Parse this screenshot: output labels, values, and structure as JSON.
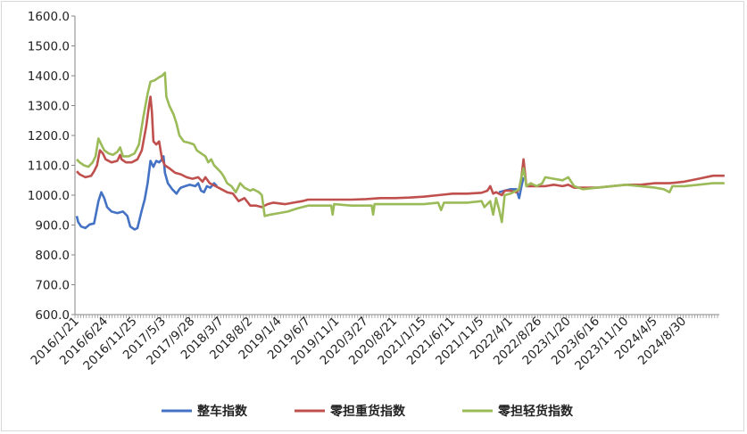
{
  "chart_data": {
    "type": "line",
    "title": "",
    "xlabel": "",
    "ylabel": "",
    "ylim": [
      600,
      1600
    ],
    "yticks": [
      "600.0",
      "700.0",
      "800.0",
      "900.0",
      "1000.0",
      "1100.0",
      "1200.0",
      "1300.0",
      "1400.0",
      "1500.0",
      "1600.0"
    ],
    "xticks": [
      "2016/1/21",
      "2016/6/24",
      "2016/11/25",
      "2017/5/3",
      "2017/9/28",
      "2018/3/7",
      "2018/8/2",
      "2019/1/4",
      "2019/6/7",
      "2019/11/1",
      "2020/3/27",
      "2020/8/21",
      "2021/1/15",
      "2021/6/11",
      "2021/11/5",
      "2022/4/1",
      "2022/8/26",
      "2023/1/20",
      "2023/6/16",
      "2023/11/10",
      "2024/4/5",
      "2024/8/30"
    ],
    "grid": false,
    "legend_position": "bottom",
    "colors": {
      "zhengche": "#4472c4",
      "zhongzhong": "#c0504d",
      "qinghuo": "#9bbb59"
    },
    "series": [
      {
        "name": "整车指数",
        "color": "#4472c4",
        "points": [
          [
            0,
            930
          ],
          [
            0.05,
            910
          ],
          [
            0.15,
            895
          ],
          [
            0.3,
            890
          ],
          [
            0.45,
            902
          ],
          [
            0.6,
            905
          ],
          [
            0.75,
            980
          ],
          [
            0.85,
            1010
          ],
          [
            0.95,
            990
          ],
          [
            1.05,
            960
          ],
          [
            1.2,
            945
          ],
          [
            1.4,
            940
          ],
          [
            1.6,
            945
          ],
          [
            1.75,
            930
          ],
          [
            1.85,
            895
          ],
          [
            2.0,
            885
          ],
          [
            2.1,
            890
          ],
          [
            2.25,
            950
          ],
          [
            2.35,
            985
          ],
          [
            2.45,
            1040
          ],
          [
            2.55,
            1115
          ],
          [
            2.65,
            1095
          ],
          [
            2.75,
            1115
          ],
          [
            2.85,
            1110
          ],
          [
            2.95,
            1120
          ],
          [
            3.0,
            1130
          ],
          [
            3.05,
            1075
          ],
          [
            3.15,
            1040
          ],
          [
            3.3,
            1020
          ],
          [
            3.45,
            1005
          ],
          [
            3.55,
            1020
          ],
          [
            3.6,
            1025
          ],
          [
            3.75,
            1030
          ],
          [
            3.9,
            1035
          ],
          [
            4.1,
            1030
          ],
          [
            4.2,
            1040
          ],
          [
            4.3,
            1015
          ],
          [
            4.4,
            1010
          ],
          [
            4.5,
            1030
          ],
          [
            4.62,
            1025
          ],
          [
            4.75,
            1040
          ],
          [
            4.85,
            1030
          ],
          [
            14.6,
            1010
          ],
          [
            14.8,
            1015
          ],
          [
            15.0,
            1020
          ],
          [
            15.2,
            1020
          ],
          [
            15.3,
            990
          ],
          [
            15.38,
            1030
          ],
          [
            15.45,
            1060
          ]
        ]
      },
      {
        "name": "零担重货指数",
        "color": "#c0504d",
        "points": [
          [
            0,
            1080
          ],
          [
            0.1,
            1070
          ],
          [
            0.3,
            1060
          ],
          [
            0.5,
            1065
          ],
          [
            0.6,
            1080
          ],
          [
            0.7,
            1100
          ],
          [
            0.8,
            1150
          ],
          [
            0.9,
            1140
          ],
          [
            1.0,
            1120
          ],
          [
            1.2,
            1110
          ],
          [
            1.4,
            1115
          ],
          [
            1.5,
            1135
          ],
          [
            1.55,
            1120
          ],
          [
            1.7,
            1110
          ],
          [
            1.9,
            1110
          ],
          [
            2.1,
            1120
          ],
          [
            2.25,
            1150
          ],
          [
            2.4,
            1230
          ],
          [
            2.5,
            1300
          ],
          [
            2.55,
            1330
          ],
          [
            2.6,
            1280
          ],
          [
            2.65,
            1180
          ],
          [
            2.75,
            1170
          ],
          [
            2.85,
            1180
          ],
          [
            2.95,
            1120
          ],
          [
            3.05,
            1100
          ],
          [
            3.2,
            1090
          ],
          [
            3.4,
            1075
          ],
          [
            3.6,
            1070
          ],
          [
            3.8,
            1060
          ],
          [
            4.0,
            1055
          ],
          [
            4.2,
            1060
          ],
          [
            4.35,
            1045
          ],
          [
            4.45,
            1060
          ],
          [
            4.6,
            1040
          ],
          [
            4.8,
            1030
          ],
          [
            5.0,
            1020
          ],
          [
            5.2,
            1010
          ],
          [
            5.4,
            1005
          ],
          [
            5.6,
            980
          ],
          [
            5.8,
            990
          ],
          [
            6.0,
            965
          ],
          [
            6.2,
            965
          ],
          [
            6.4,
            960
          ],
          [
            6.6,
            970
          ],
          [
            6.8,
            975
          ],
          [
            7.2,
            970
          ],
          [
            7.5,
            975
          ],
          [
            7.8,
            980
          ],
          [
            8.0,
            985
          ],
          [
            8.5,
            985
          ],
          [
            9.0,
            985
          ],
          [
            9.5,
            985
          ],
          [
            10.0,
            987
          ],
          [
            10.5,
            990
          ],
          [
            11.0,
            990
          ],
          [
            11.5,
            992
          ],
          [
            12.0,
            995
          ],
          [
            12.5,
            1000
          ],
          [
            13.0,
            1005
          ],
          [
            13.5,
            1005
          ],
          [
            14.0,
            1008
          ],
          [
            14.2,
            1015
          ],
          [
            14.3,
            1030
          ],
          [
            14.4,
            1005
          ],
          [
            14.5,
            1010
          ],
          [
            14.7,
            1000
          ],
          [
            14.8,
            1015
          ],
          [
            15.0,
            1015
          ],
          [
            15.2,
            1010
          ],
          [
            15.3,
            1020
          ],
          [
            15.38,
            1060
          ],
          [
            15.45,
            1120
          ],
          [
            15.55,
            1030
          ],
          [
            15.7,
            1030
          ],
          [
            15.9,
            1030
          ],
          [
            16.2,
            1030
          ],
          [
            16.5,
            1035
          ],
          [
            16.8,
            1030
          ],
          [
            17.0,
            1035
          ],
          [
            17.2,
            1025
          ],
          [
            17.5,
            1025
          ],
          [
            18.0,
            1025
          ],
          [
            18.5,
            1030
          ],
          [
            19.0,
            1035
          ],
          [
            19.5,
            1035
          ],
          [
            20.0,
            1040
          ],
          [
            20.5,
            1040
          ],
          [
            21.0,
            1045
          ],
          [
            21.5,
            1055
          ],
          [
            22.0,
            1065
          ],
          [
            22.4,
            1065
          ]
        ]
      },
      {
        "name": "零担轻货指数",
        "color": "#9bbb59",
        "points": [
          [
            0,
            1120
          ],
          [
            0.1,
            1110
          ],
          [
            0.25,
            1100
          ],
          [
            0.4,
            1095
          ],
          [
            0.55,
            1110
          ],
          [
            0.65,
            1130
          ],
          [
            0.75,
            1190
          ],
          [
            0.85,
            1170
          ],
          [
            0.95,
            1150
          ],
          [
            1.1,
            1140
          ],
          [
            1.25,
            1135
          ],
          [
            1.4,
            1145
          ],
          [
            1.5,
            1160
          ],
          [
            1.6,
            1130
          ],
          [
            1.8,
            1130
          ],
          [
            2.0,
            1140
          ],
          [
            2.15,
            1170
          ],
          [
            2.3,
            1260
          ],
          [
            2.45,
            1340
          ],
          [
            2.55,
            1380
          ],
          [
            2.7,
            1385
          ],
          [
            2.85,
            1395
          ],
          [
            2.95,
            1400
          ],
          [
            3.05,
            1410
          ],
          [
            3.1,
            1330
          ],
          [
            3.2,
            1300
          ],
          [
            3.35,
            1270
          ],
          [
            3.45,
            1240
          ],
          [
            3.55,
            1200
          ],
          [
            3.7,
            1180
          ],
          [
            3.9,
            1175
          ],
          [
            4.05,
            1170
          ],
          [
            4.15,
            1150
          ],
          [
            4.3,
            1140
          ],
          [
            4.45,
            1130
          ],
          [
            4.55,
            1110
          ],
          [
            4.65,
            1120
          ],
          [
            4.75,
            1100
          ],
          [
            4.85,
            1090
          ],
          [
            5.0,
            1075
          ],
          [
            5.1,
            1060
          ],
          [
            5.2,
            1040
          ],
          [
            5.35,
            1030
          ],
          [
            5.5,
            1010
          ],
          [
            5.65,
            1040
          ],
          [
            5.8,
            1025
          ],
          [
            6.0,
            1015
          ],
          [
            6.1,
            1020
          ],
          [
            6.2,
            1015
          ],
          [
            6.3,
            1010
          ],
          [
            6.4,
            1000
          ],
          [
            6.5,
            930
          ],
          [
            6.7,
            935
          ],
          [
            7.0,
            940
          ],
          [
            7.3,
            945
          ],
          [
            7.6,
            955
          ],
          [
            8.0,
            965
          ],
          [
            8.5,
            965
          ],
          [
            8.8,
            965
          ],
          [
            8.85,
            935
          ],
          [
            8.9,
            970
          ],
          [
            9.5,
            965
          ],
          [
            10.0,
            965
          ],
          [
            10.2,
            965
          ],
          [
            10.25,
            935
          ],
          [
            10.3,
            970
          ],
          [
            11.0,
            970
          ],
          [
            11.5,
            970
          ],
          [
            12.0,
            970
          ],
          [
            12.5,
            975
          ],
          [
            12.6,
            950
          ],
          [
            12.7,
            975
          ],
          [
            13.0,
            975
          ],
          [
            13.5,
            975
          ],
          [
            14.0,
            980
          ],
          [
            14.1,
            960
          ],
          [
            14.3,
            980
          ],
          [
            14.4,
            935
          ],
          [
            14.5,
            990
          ],
          [
            14.6,
            955
          ],
          [
            14.7,
            910
          ],
          [
            14.8,
            1000
          ],
          [
            15.0,
            1005
          ],
          [
            15.2,
            1015
          ],
          [
            15.3,
            1020
          ],
          [
            15.38,
            1060
          ],
          [
            15.45,
            1090
          ],
          [
            15.55,
            1030
          ],
          [
            15.7,
            1040
          ],
          [
            15.9,
            1030
          ],
          [
            16.1,
            1040
          ],
          [
            16.2,
            1060
          ],
          [
            16.5,
            1055
          ],
          [
            16.8,
            1050
          ],
          [
            17.0,
            1060
          ],
          [
            17.2,
            1030
          ],
          [
            17.5,
            1020
          ],
          [
            18.0,
            1025
          ],
          [
            18.5,
            1030
          ],
          [
            19.0,
            1035
          ],
          [
            19.5,
            1030
          ],
          [
            20.0,
            1025
          ],
          [
            20.3,
            1020
          ],
          [
            20.5,
            1010
          ],
          [
            20.6,
            1030
          ],
          [
            21.0,
            1030
          ],
          [
            21.5,
            1035
          ],
          [
            22.0,
            1040
          ],
          [
            22.4,
            1040
          ]
        ]
      }
    ]
  }
}
